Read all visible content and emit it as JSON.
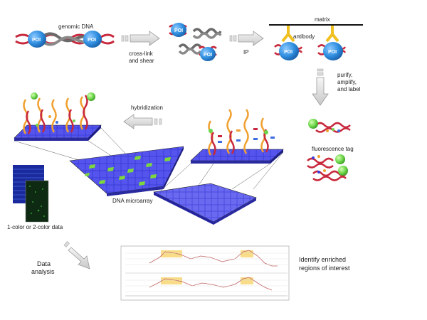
{
  "labels": {
    "genomic_dna": "genomic DNA",
    "poi": "POI",
    "crosslink_line1": "cross-link",
    "crosslink_line2": "and shear",
    "ip": "IP",
    "matrix": "matrix",
    "antibody": "antibody",
    "purify_line1": "purify,",
    "purify_line2": "amplify,",
    "purify_line3": "and label",
    "hybridization": "hybridization",
    "fluorescence_tag": "fluorescence tag",
    "dna_microarray": "DNA microarray",
    "color_data": "1-color or 2-color data",
    "data_analysis_line1": "Data",
    "data_analysis_line2": "analysis",
    "identify_line1": "Identify enriched",
    "identify_line2": "regions of interest"
  },
  "colors": {
    "poi_blue": "#2f8fe0",
    "dna_red": "#c8283c",
    "dna_gray": "#6a6a6a",
    "antibody_yellow": "#f0c020",
    "array_blue": "#3c3cdc",
    "spot_green": "#7cd83c",
    "tag_green": "#6cd64a",
    "probe_orange": "#f0a030",
    "enrich_yellow": "#f6d36a"
  }
}
